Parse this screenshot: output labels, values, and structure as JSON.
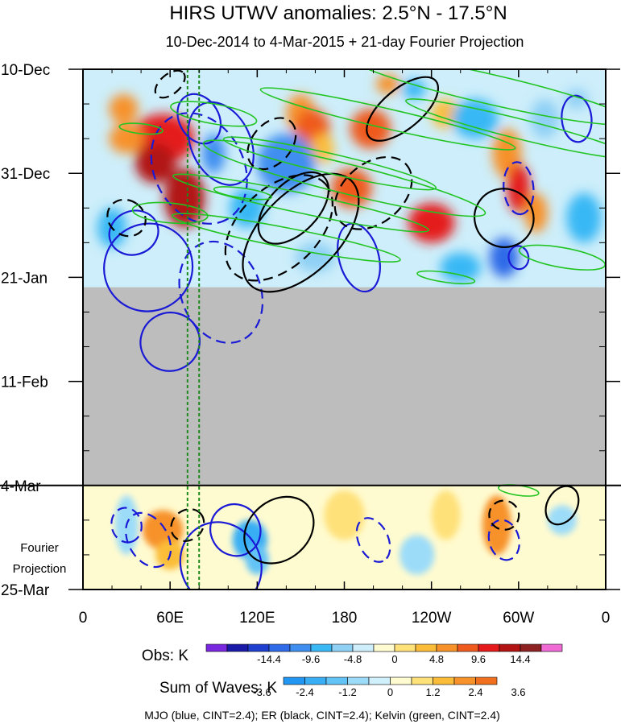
{
  "chart_data": {
    "type": "heatmap",
    "title": "HIRS UTWV anomalies: 2.5°N - 17.5°N",
    "subtitle": "10-Dec-2014 to 4-Mar-2015 + 21-day Fourier Projection",
    "x_ticks": [
      {
        "label": "0",
        "lon": 0
      },
      {
        "label": "60E",
        "lon": 60
      },
      {
        "label": "120E",
        "lon": 120
      },
      {
        "label": "180",
        "lon": 180
      },
      {
        "label": "120W",
        "lon": 240
      },
      {
        "label": "60W",
        "lon": 300
      },
      {
        "label": "0",
        "lon": 360
      }
    ],
    "x_range": [
      0,
      360
    ],
    "y_ticks": [
      {
        "label": "10-Dec",
        "day": 0
      },
      {
        "label": "31-Dec",
        "day": 21
      },
      {
        "label": "21-Jan",
        "day": 42
      },
      {
        "label": "11-Feb",
        "day": 63
      },
      {
        "label": "4-Mar",
        "day": 84
      },
      {
        "label": "25-Mar",
        "day": 105
      }
    ],
    "y_range_days": [
      0,
      105
    ],
    "missing_data_days": [
      44,
      84
    ],
    "projection_start_day": 84,
    "projection_label_lines": [
      "Fourier",
      "Projection"
    ],
    "vertical_reference_lons": [
      72,
      80
    ],
    "obs_legend": {
      "label": "Obs: K",
      "tick_labels": [
        "-14.4",
        "-9.6",
        "-4.8",
        "0",
        "4.8",
        "9.6",
        "14.4"
      ],
      "colors": [
        "#7a28e0",
        "#1a1aa8",
        "#1f3fcf",
        "#2f6ae8",
        "#3f8ff0",
        "#39b8f5",
        "#8fd0f5",
        "#cdeefa",
        "#fffbd0",
        "#ffe17a",
        "#fbbd39",
        "#f7922a",
        "#ef5a1e",
        "#e51a1a",
        "#b21414",
        "#8c2222",
        "#f06ad6"
      ]
    },
    "waves_legend": {
      "label": "Sum of Waves: K",
      "tick_labels": [
        "-3.6",
        "-2.4",
        "-1.2",
        "0",
        "1.2",
        "2.4",
        "3.6"
      ],
      "colors": [
        "#2196f3",
        "#39aef5",
        "#62c3f7",
        "#9cdcf9",
        "#d0f0fb",
        "#fffbd0",
        "#ffe17a",
        "#fbbd39",
        "#f7922a",
        "#f07020"
      ]
    },
    "footer": "MJO (blue, CINT=2.4); ER (black, CINT=2.4); Kelvin (green, CINT=2.4)",
    "overlay_series": [
      {
        "name": "MJO",
        "color": "#1a1ad6"
      },
      {
        "name": "ER",
        "color": "#000000"
      },
      {
        "name": "Kelvin",
        "color": "#22c422"
      }
    ],
    "anomaly_blobs": [
      {
        "lon": 55,
        "day": 14,
        "rlon": 22,
        "rday": 5,
        "value": 12
      },
      {
        "lon": 50,
        "day": 19,
        "rlon": 14,
        "rday": 4,
        "value": 15
      },
      {
        "lon": 70,
        "day": 26,
        "rlon": 14,
        "rday": 6,
        "value": 16
      },
      {
        "lon": 28,
        "day": 8,
        "rlon": 10,
        "rday": 3,
        "value": 8
      },
      {
        "lon": 30,
        "day": 14,
        "rlon": 12,
        "rday": 3,
        "value": 6
      },
      {
        "lon": 150,
        "day": 9,
        "rlon": 10,
        "rday": 4,
        "value": 6
      },
      {
        "lon": 158,
        "day": 12,
        "rlon": 12,
        "rday": 4,
        "value": 9
      },
      {
        "lon": 165,
        "day": 16,
        "rlon": 8,
        "rday": 3,
        "value": 5
      },
      {
        "lon": 198,
        "day": 12,
        "rlon": 14,
        "rday": 4,
        "value": 9
      },
      {
        "lon": 185,
        "day": 24,
        "rlon": 14,
        "rday": 4,
        "value": 11
      },
      {
        "lon": 240,
        "day": 31,
        "rlon": 16,
        "rday": 4,
        "value": 14
      },
      {
        "lon": 292,
        "day": 17,
        "rlon": 10,
        "rday": 5,
        "value": 8
      },
      {
        "lon": 300,
        "day": 24,
        "rlon": 8,
        "rday": 5,
        "value": 12
      },
      {
        "lon": 312,
        "day": 29,
        "rlon": 8,
        "rday": 4,
        "value": 7
      },
      {
        "lon": 210,
        "day": 3,
        "rlon": 8,
        "rday": 2,
        "value": 8
      },
      {
        "lon": 250,
        "day": 9,
        "rlon": 10,
        "rday": 3,
        "value": 5
      },
      {
        "lon": 90,
        "day": 17,
        "rlon": 8,
        "rday": 4,
        "value": -8
      },
      {
        "lon": 140,
        "day": 19,
        "rlon": 20,
        "rday": 6,
        "value": -9
      },
      {
        "lon": 113,
        "day": 28,
        "rlon": 12,
        "rday": 4,
        "value": -6
      },
      {
        "lon": 270,
        "day": 10,
        "rlon": 16,
        "rday": 4,
        "value": -7
      },
      {
        "lon": 290,
        "day": 38,
        "rlon": 10,
        "rday": 4,
        "value": -10
      },
      {
        "lon": 345,
        "day": 30,
        "rlon": 12,
        "rday": 5,
        "value": -7
      },
      {
        "lon": 340,
        "day": 6,
        "rlon": 8,
        "rday": 2,
        "value": -5
      },
      {
        "lon": 20,
        "day": 32,
        "rlon": 10,
        "rday": 4,
        "value": -6
      },
      {
        "lon": 228,
        "day": 4,
        "rlon": 8,
        "rday": 2,
        "value": -6
      },
      {
        "lon": 318,
        "day": 10,
        "rlon": 10,
        "rday": 4,
        "value": -5
      },
      {
        "lon": 160,
        "day": 38,
        "rlon": 14,
        "rday": 3,
        "value": -5
      },
      {
        "lon": 260,
        "day": 40,
        "rlon": 14,
        "rday": 3,
        "value": -6
      }
    ],
    "projection_blobs": [
      {
        "lon": 55,
        "day": 93,
        "rlon": 14,
        "rday": 4,
        "value": 3.0
      },
      {
        "lon": 60,
        "day": 98,
        "rlon": 10,
        "rday": 3,
        "value": 2.6
      },
      {
        "lon": 115,
        "day": 95,
        "rlon": 12,
        "rday": 4,
        "value": -3.4
      },
      {
        "lon": 120,
        "day": 99,
        "rlon": 8,
        "rday": 3,
        "value": -2.4
      },
      {
        "lon": 285,
        "day": 92,
        "rlon": 10,
        "rday": 6,
        "value": 3.4
      },
      {
        "lon": 180,
        "day": 90,
        "rlon": 14,
        "rday": 5,
        "value": 1.3
      },
      {
        "lon": 230,
        "day": 98,
        "rlon": 12,
        "rday": 4,
        "value": -1.3
      },
      {
        "lon": 30,
        "day": 92,
        "rlon": 8,
        "rday": 6,
        "value": -1.5
      },
      {
        "lon": 330,
        "day": 91,
        "rlon": 10,
        "rday": 3,
        "value": -1.2
      },
      {
        "lon": 250,
        "day": 90,
        "rlon": 10,
        "rday": 5,
        "value": 1.2
      },
      {
        "lon": 160,
        "day": 101,
        "rlon": 8,
        "rday": 3,
        "value": 1.0
      },
      {
        "lon": 95,
        "day": 88,
        "rlon": 10,
        "rday": 3,
        "value": 1.1
      }
    ],
    "contours": [
      {
        "wave": "MJO",
        "lon": 35,
        "day": 33,
        "rlon": 15,
        "rday": 5,
        "deg": 70,
        "dashed": false
      },
      {
        "wave": "MJO",
        "lon": 45,
        "day": 40,
        "rlon": 30,
        "rday": 9,
        "deg": 55,
        "dashed": false
      },
      {
        "wave": "MJO",
        "lon": 95,
        "day": 15,
        "rlon": 30,
        "rday": 6,
        "deg": 65,
        "dashed": false
      },
      {
        "wave": "MJO",
        "lon": 80,
        "day": 10,
        "rlon": 18,
        "rday": 4,
        "deg": 60,
        "dashed": false
      },
      {
        "wave": "MJO",
        "lon": 190,
        "day": 38,
        "rlon": 24,
        "rday": 4,
        "deg": 75,
        "dashed": false
      },
      {
        "wave": "MJO",
        "lon": 300,
        "day": 38,
        "rlon": 8,
        "rday": 2,
        "deg": 80,
        "dashed": false
      },
      {
        "wave": "MJO",
        "lon": 340,
        "day": 10,
        "rlon": 16,
        "rday": 3,
        "deg": 85,
        "dashed": false
      },
      {
        "wave": "MJO",
        "lon": 95,
        "day": 100,
        "rlon": 30,
        "rday": 8,
        "deg": 60,
        "dashed": false
      },
      {
        "wave": "MJO",
        "lon": 105,
        "day": 93,
        "rlon": 18,
        "rday": 5,
        "deg": 62,
        "dashed": false
      },
      {
        "wave": "MJO",
        "lon": 60,
        "day": 55,
        "rlon": 20,
        "rday": 6,
        "deg": 60,
        "dashed": false
      },
      {
        "wave": "MJO",
        "lon": 80,
        "day": 20,
        "rlon": 40,
        "rday": 9,
        "deg": 62,
        "dashed": true
      },
      {
        "wave": "MJO",
        "lon": 95,
        "day": 45,
        "rlon": 36,
        "rday": 8,
        "deg": 68,
        "dashed": true
      },
      {
        "wave": "MJO",
        "lon": 300,
        "day": 24,
        "rlon": 18,
        "rday": 3,
        "deg": 85,
        "dashed": true
      },
      {
        "wave": "MJO",
        "lon": 45,
        "day": 95,
        "rlon": 20,
        "rday": 4,
        "deg": 60,
        "dashed": true
      },
      {
        "wave": "MJO",
        "lon": 30,
        "day": 92,
        "rlon": 12,
        "rday": 3,
        "deg": 75,
        "dashed": true
      },
      {
        "wave": "MJO",
        "lon": 290,
        "day": 95,
        "rlon": 14,
        "rday": 3,
        "deg": 75,
        "dashed": true
      },
      {
        "wave": "MJO",
        "lon": 200,
        "day": 95,
        "rlon": 16,
        "rday": 3,
        "deg": 65,
        "dashed": true
      },
      {
        "wave": "ER",
        "lon": 150,
        "day": 33,
        "rlon": 50,
        "rday": 8,
        "deg": -46,
        "dashed": false
      },
      {
        "wave": "ER",
        "lon": 145,
        "day": 28,
        "rlon": 30,
        "rday": 5,
        "deg": -46,
        "dashed": false
      },
      {
        "wave": "ER",
        "lon": 220,
        "day": 8,
        "rlon": 30,
        "rday": 4,
        "deg": -40,
        "dashed": false
      },
      {
        "wave": "ER",
        "lon": 330,
        "day": 88,
        "rlon": 14,
        "rday": 3,
        "deg": -60,
        "dashed": false
      },
      {
        "wave": "ER",
        "lon": 290,
        "day": 30,
        "rlon": 20,
        "rday": 6,
        "deg": -60,
        "dashed": false
      },
      {
        "wave": "ER",
        "lon": 135,
        "day": 93,
        "rlon": 26,
        "rday": 6,
        "deg": -40,
        "dashed": false
      },
      {
        "wave": "ER",
        "lon": 30,
        "day": 30,
        "rlon": 12,
        "rday": 4,
        "deg": -55,
        "dashed": true
      },
      {
        "wave": "ER",
        "lon": 135,
        "day": 32,
        "rlon": 44,
        "rday": 8,
        "deg": -44,
        "dashed": true
      },
      {
        "wave": "ER",
        "lon": 130,
        "day": 15,
        "rlon": 20,
        "rday": 4,
        "deg": -50,
        "dashed": true
      },
      {
        "wave": "ER",
        "lon": 200,
        "day": 25,
        "rlon": 30,
        "rday": 6,
        "deg": -40,
        "dashed": true
      },
      {
        "wave": "ER",
        "lon": 60,
        "day": 3,
        "rlon": 12,
        "rday": 2,
        "deg": -40,
        "dashed": true
      },
      {
        "wave": "ER",
        "lon": 290,
        "day": 90,
        "rlon": 10,
        "rday": 3,
        "deg": -70,
        "dashed": true
      },
      {
        "wave": "ER",
        "lon": 72,
        "day": 92,
        "rlon": 12,
        "rday": 3,
        "deg": -40,
        "dashed": true
      },
      {
        "wave": "Kelvin",
        "lon": 210,
        "day": 10,
        "rlon": 90,
        "rday": 2,
        "deg": 13,
        "dashed": false
      },
      {
        "wave": "Kelvin",
        "lon": 180,
        "day": 22,
        "rlon": 100,
        "rday": 3,
        "deg": 14,
        "dashed": false
      },
      {
        "wave": "Kelvin",
        "lon": 170,
        "day": 19,
        "rlon": 75,
        "rday": 2,
        "deg": 13,
        "dashed": false
      },
      {
        "wave": "Kelvin",
        "lon": 150,
        "day": 27,
        "rlon": 90,
        "rday": 2,
        "deg": 12,
        "dashed": false
      },
      {
        "wave": "Kelvin",
        "lon": 140,
        "day": 34,
        "rlon": 80,
        "rday": 2,
        "deg": 11,
        "dashed": false
      },
      {
        "wave": "Kelvin",
        "lon": 280,
        "day": 4,
        "rlon": 100,
        "rday": 3,
        "deg": 13,
        "dashed": false
      },
      {
        "wave": "Kelvin",
        "lon": 300,
        "day": 12,
        "rlon": 80,
        "rday": 2,
        "deg": 14,
        "dashed": false
      },
      {
        "wave": "Kelvin",
        "lon": 90,
        "day": 9,
        "rlon": 30,
        "rday": 2,
        "deg": 10,
        "dashed": false
      },
      {
        "wave": "Kelvin",
        "lon": 60,
        "day": 29,
        "rlon": 26,
        "rday": 2,
        "deg": 5,
        "dashed": false
      },
      {
        "wave": "Kelvin",
        "lon": 330,
        "day": 38,
        "rlon": 30,
        "rday": 2,
        "deg": 10,
        "dashed": false
      },
      {
        "wave": "Kelvin",
        "lon": 40,
        "day": 12,
        "rlon": 15,
        "rday": 1,
        "deg": 6,
        "dashed": false
      },
      {
        "wave": "Kelvin",
        "lon": 300,
        "day": 85,
        "rlon": 14,
        "rday": 1,
        "deg": 8,
        "dashed": false
      },
      {
        "wave": "Kelvin",
        "lon": 250,
        "day": 42,
        "rlon": 20,
        "rday": 1,
        "deg": 8,
        "dashed": false
      },
      {
        "wave": "Kelvin",
        "lon": 110,
        "day": 25,
        "rlon": 20,
        "rday": 1,
        "deg": 8,
        "dashed": false
      }
    ]
  }
}
